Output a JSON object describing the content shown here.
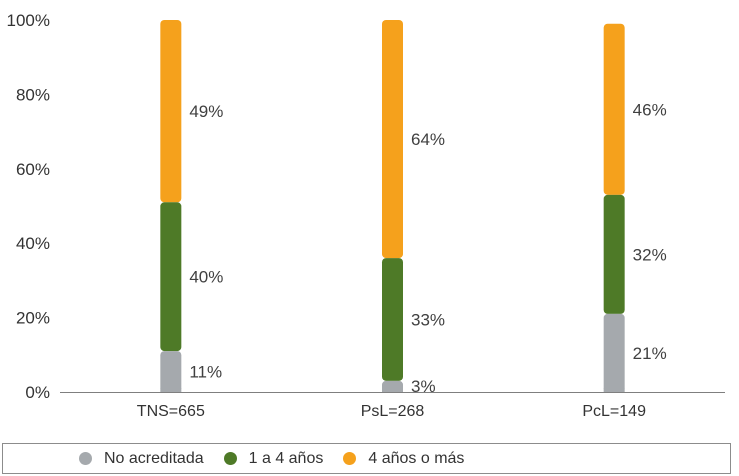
{
  "chart_data": {
    "type": "bar",
    "stacked": true,
    "categories": [
      "TNS=665",
      "PsL=268",
      "PcL=149"
    ],
    "series": [
      {
        "name": "No acreditada",
        "values": [
          11,
          3,
          21
        ],
        "labels": [
          "11%",
          "3%",
          "21%"
        ],
        "color": "#a5a9ad"
      },
      {
        "name": "1 a 4 años",
        "values": [
          40,
          33,
          32
        ],
        "labels": [
          "40%",
          "33%",
          "32%"
        ],
        "color": "#4e7a27"
      },
      {
        "name": "4 años o más",
        "values": [
          49,
          64,
          46
        ],
        "labels": [
          "49%",
          "64%",
          "46%"
        ],
        "color": "#f5a11c"
      }
    ],
    "yticks": [
      "0%",
      "20%",
      "40%",
      "60%",
      "80%",
      "100%"
    ],
    "ylim": [
      0,
      100
    ],
    "grid": false,
    "legend_position": "bottom"
  }
}
